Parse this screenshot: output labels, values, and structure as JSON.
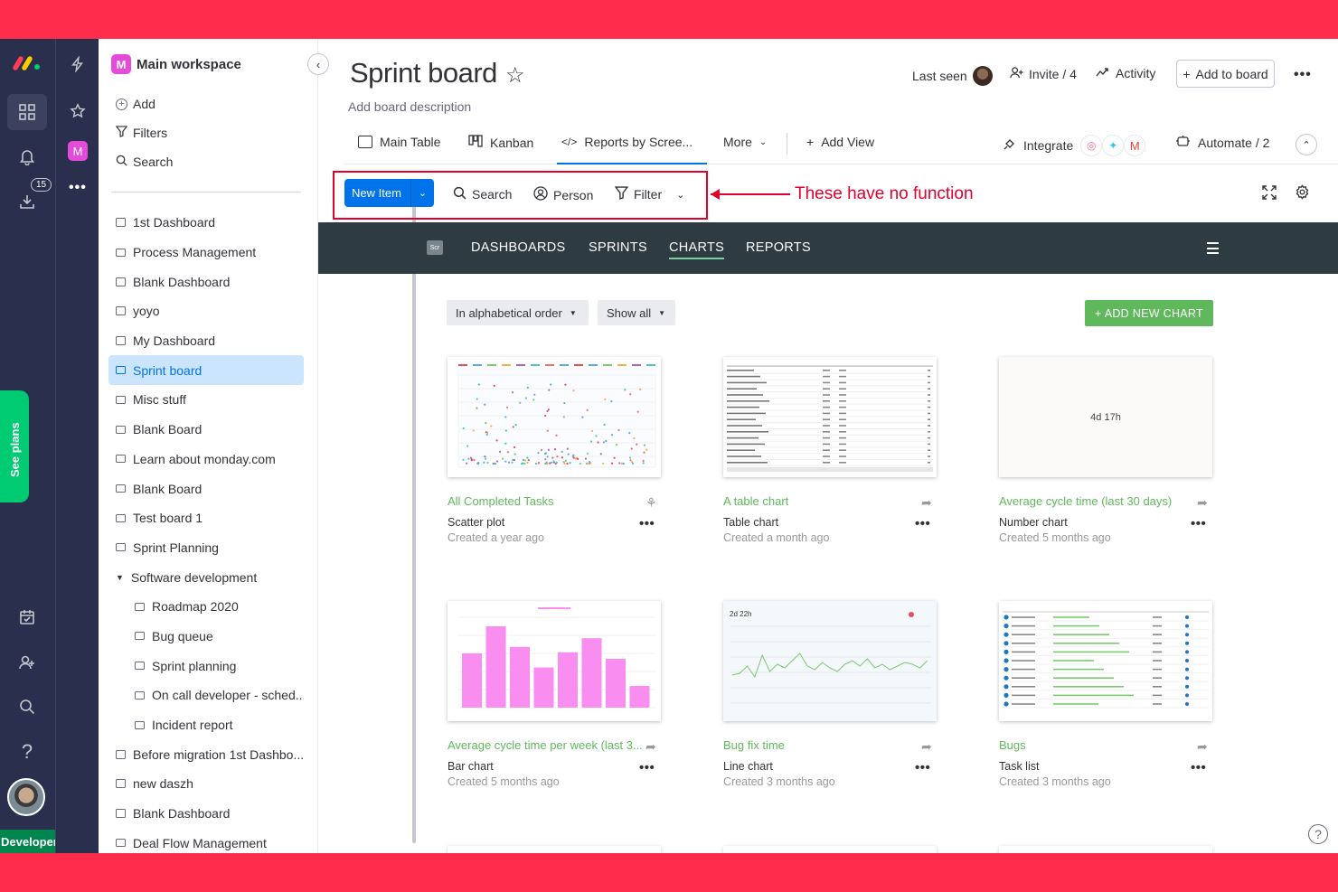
{
  "rail": {
    "badge": "15",
    "see_plans": "See plans",
    "developer": "Developer"
  },
  "workspace": {
    "name": "Main workspace",
    "avatar_letter": "M",
    "actions": [
      "Add",
      "Filters",
      "Search"
    ],
    "items": [
      {
        "label": "1st Dashboard",
        "type": "dashboard"
      },
      {
        "label": "Process Management",
        "type": "board"
      },
      {
        "label": "Blank Dashboard",
        "type": "dashboard"
      },
      {
        "label": "yoyo",
        "type": "dashboard"
      },
      {
        "label": "My Dashboard",
        "type": "dashboard"
      },
      {
        "label": "Sprint board",
        "type": "board",
        "active": true
      },
      {
        "label": "Misc stuff",
        "type": "board"
      },
      {
        "label": "Blank Board",
        "type": "board"
      },
      {
        "label": "Learn about monday.com",
        "type": "board"
      },
      {
        "label": "Blank Board",
        "type": "board"
      },
      {
        "label": "Test board 1",
        "type": "board"
      },
      {
        "label": "Sprint Planning",
        "type": "board"
      },
      {
        "label": "Software development",
        "type": "folder"
      },
      {
        "label": "Roadmap 2020",
        "type": "board",
        "sub": true
      },
      {
        "label": "Bug queue",
        "type": "board",
        "sub": true
      },
      {
        "label": "Sprint planning",
        "type": "board",
        "sub": true
      },
      {
        "label": "On call developer - sched...",
        "type": "board",
        "sub": true
      },
      {
        "label": "Incident report",
        "type": "board",
        "sub": true
      },
      {
        "label": "Before migration 1st Dashbo...",
        "type": "dashboard"
      },
      {
        "label": "new daszh",
        "type": "dashboard"
      },
      {
        "label": "Blank Dashboard",
        "type": "dashboard"
      },
      {
        "label": "Deal Flow Management",
        "type": "board"
      }
    ]
  },
  "header": {
    "title": "Sprint board",
    "description": "Add board description",
    "last_seen": "Last seen",
    "invite": "Invite / 4",
    "activity": "Activity",
    "add_to_board": "Add to board"
  },
  "tabs": {
    "main_table": "Main Table",
    "kanban": "Kanban",
    "reports": "Reports by Scree...",
    "more": "More",
    "add_view": "Add View",
    "integrate": "Integrate",
    "automate": "Automate / 2"
  },
  "toolbar": {
    "new_item": "New Item",
    "search": "Search",
    "person": "Person",
    "filter": "Filter"
  },
  "annotation": "These have no function",
  "app": {
    "logo": "Scr",
    "nav": [
      "DASHBOARDS",
      "SPRINTS",
      "CHARTS",
      "REPORTS"
    ],
    "active_nav": "CHARTS",
    "sort": "In alphabetical order",
    "show": "Show all",
    "add_chart": "+ ADD NEW CHART"
  },
  "cards": [
    {
      "title": "All Completed Tasks",
      "type": "Scatter plot",
      "created": "Created a year ago"
    },
    {
      "title": "A table chart",
      "type": "Table chart",
      "created": "Created a month ago"
    },
    {
      "title": "Average cycle time (last 30 days)",
      "type": "Number chart",
      "created": "Created 5 months ago",
      "value": "4d 17h"
    },
    {
      "title": "Average cycle time per week (last 3...",
      "type": "Bar chart",
      "created": "Created 5 months ago"
    },
    {
      "title": "Bug fix time",
      "type": "Line chart",
      "created": "Created 3 months ago",
      "value": "2d 22h"
    },
    {
      "title": "Bugs",
      "type": "Task list",
      "created": "Created 3 months ago"
    }
  ],
  "colors": {
    "brand_blue": "#0073ea",
    "accent_green": "#5fb85c",
    "nav_bg": "#2f3b42",
    "annotation_red": "#e2002d",
    "frame_red": "#ff2d4b"
  }
}
